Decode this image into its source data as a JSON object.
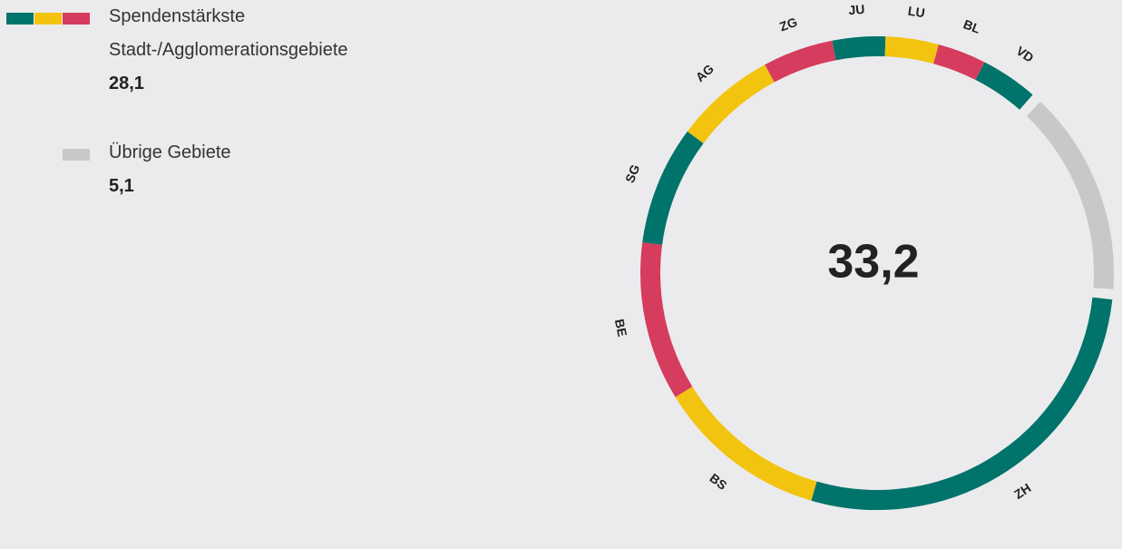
{
  "chart_data": {
    "type": "donut",
    "categories": [
      "ZH",
      "BS",
      "BE",
      "SG",
      "AG",
      "ZG",
      "JU",
      "LU",
      "BL",
      "VD",
      null
    ],
    "values": [
      9.2,
      3.9,
      3.6,
      2.7,
      2.3,
      1.6,
      1.2,
      1.2,
      1.1,
      1.3,
      5.1
    ],
    "colors": [
      "#00736b",
      "#f2c40f",
      "#d63c5e",
      "#00736b",
      "#f2c40f",
      "#d63c5e",
      "#00736b",
      "#f2c40f",
      "#d63c5e",
      "#00736b",
      "#c8c8c8"
    ],
    "total": {
      "value": 33.2,
      "label": "33,2"
    },
    "legend": [
      {
        "name": "Spendenstärkste Stadt-/Agglomerationsgebiete",
        "value": 28.1,
        "label": "28,1",
        "colors": [
          "#00736b",
          "#f2c40f",
          "#d63c5e"
        ]
      },
      {
        "name": "Übrige Gebiete",
        "value": 5.1,
        "label": "5,1",
        "colors": [
          "#c8c8c8"
        ]
      }
    ]
  }
}
